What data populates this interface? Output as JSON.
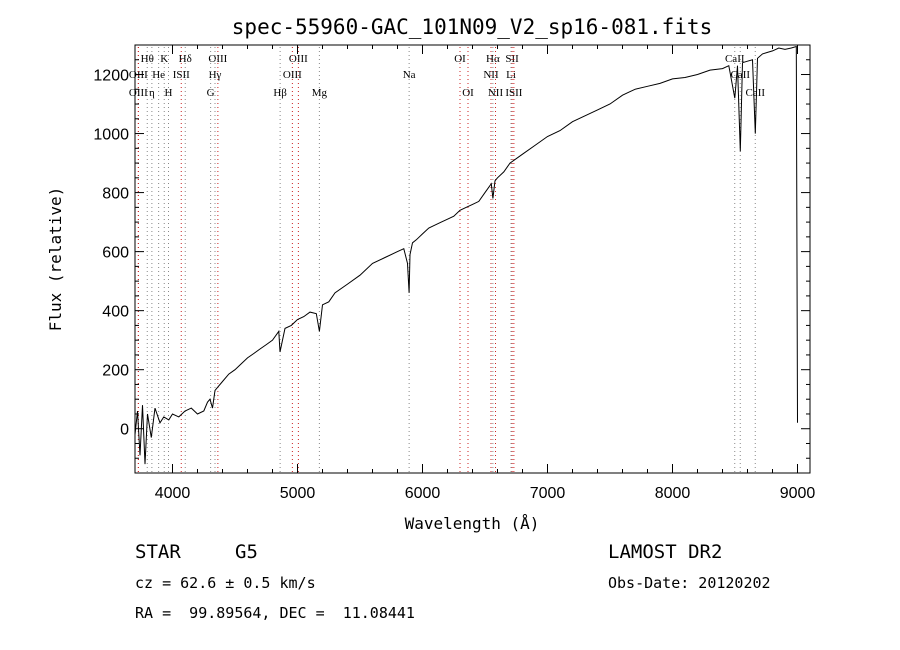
{
  "chart_data": {
    "type": "line",
    "title": "spec-55960-GAC_101N09_V2_sp16-081.fits",
    "xlabel": "Wavelength (Å)",
    "ylabel": "Flux (relative)",
    "xlim": [
      3700,
      9100
    ],
    "ylim": [
      -150,
      1300
    ],
    "x_ticks": [
      4000,
      5000,
      6000,
      7000,
      8000,
      9000
    ],
    "y_ticks": [
      0,
      200,
      400,
      600,
      800,
      1000,
      1200
    ],
    "grid": false,
    "series": [
      {
        "x": [
          3700,
          3720,
          3740,
          3760,
          3780,
          3800,
          3830,
          3860,
          3900,
          3930,
          3970,
          4000,
          4050,
          4100,
          4150,
          4200,
          4250,
          4280,
          4300,
          4320,
          4340,
          4360,
          4400,
          4450,
          4500,
          4550,
          4600,
          4650,
          4700,
          4750,
          4800,
          4850,
          4860,
          4900,
          4950,
          5000,
          5050,
          5100,
          5150,
          5175,
          5200,
          5250,
          5300,
          5400,
          5500,
          5600,
          5700,
          5800,
          5850,
          5880,
          5893,
          5900,
          5920,
          5950,
          6000,
          6050,
          6100,
          6150,
          6200,
          6250,
          6300,
          6350,
          6400,
          6450,
          6500,
          6550,
          6563,
          6580,
          6600,
          6650,
          6700,
          6800,
          6900,
          7000,
          7100,
          7200,
          7300,
          7400,
          7500,
          7600,
          7650,
          7700,
          7800,
          7900,
          8000,
          8100,
          8200,
          8300,
          8400,
          8450,
          8498,
          8520,
          8542,
          8560,
          8600,
          8640,
          8662,
          8680,
          8720,
          8760,
          8800,
          8850,
          8900,
          8950,
          8990,
          9000
        ],
        "y": [
          -20,
          60,
          -90,
          80,
          -120,
          50,
          -30,
          70,
          20,
          40,
          30,
          50,
          40,
          60,
          70,
          50,
          60,
          90,
          100,
          70,
          130,
          140,
          160,
          185,
          200,
          220,
          240,
          255,
          270,
          285,
          300,
          330,
          260,
          340,
          350,
          370,
          380,
          395,
          390,
          330,
          420,
          430,
          460,
          490,
          520,
          560,
          580,
          600,
          610,
          560,
          460,
          590,
          630,
          640,
          660,
          680,
          690,
          700,
          710,
          720,
          740,
          750,
          760,
          770,
          800,
          830,
          780,
          840,
          850,
          870,
          900,
          930,
          960,
          990,
          1010,
          1040,
          1060,
          1080,
          1100,
          1130,
          1140,
          1150,
          1160,
          1170,
          1185,
          1190,
          1200,
          1215,
          1220,
          1230,
          1120,
          1230,
          940,
          1240,
          1245,
          1250,
          1000,
          1255,
          1270,
          1275,
          1280,
          1290,
          1285,
          1290,
          1295,
          20
        ]
      }
    ],
    "line_markers": [
      {
        "label": "Hθ",
        "x": 3798,
        "row": 0,
        "color": "#888888"
      },
      {
        "label": "K",
        "x": 3934,
        "row": 0,
        "color": "#888888"
      },
      {
        "label": "Hδ",
        "x": 4102,
        "row": 0,
        "color": "#888888"
      },
      {
        "label": "OIII",
        "x": 4363,
        "row": 0,
        "color": "#cc2222"
      },
      {
        "label": "OIII",
        "x": 5007,
        "row": 0,
        "color": "#cc2222"
      },
      {
        "label": "OI",
        "x": 6300,
        "row": 0,
        "color": "#cc2222"
      },
      {
        "label": "Hα",
        "x": 6563,
        "row": 0,
        "color": "#888888"
      },
      {
        "label": "SII",
        "x": 6717,
        "row": 0,
        "color": "#cc2222"
      },
      {
        "label": "CaII",
        "x": 8498,
        "row": 0,
        "color": "#888888"
      },
      {
        "label": "OIII",
        "x": 3727,
        "row": 1,
        "color": "#cc2222"
      },
      {
        "label": "He",
        "x": 3889,
        "row": 1,
        "color": "#888888"
      },
      {
        "label": "ISII",
        "x": 4070,
        "row": 1,
        "color": "#cc2222"
      },
      {
        "label": "Hγ",
        "x": 4340,
        "row": 1,
        "color": "#888888"
      },
      {
        "label": "OIII",
        "x": 4959,
        "row": 1,
        "color": "#cc2222"
      },
      {
        "label": "Na",
        "x": 5893,
        "row": 1,
        "color": "#888888"
      },
      {
        "label": "NII",
        "x": 6548,
        "row": 1,
        "color": "#cc2222"
      },
      {
        "label": "Li",
        "x": 6708,
        "row": 1,
        "color": "#888888"
      },
      {
        "label": "CaII",
        "x": 8542,
        "row": 1,
        "color": "#888888"
      },
      {
        "label": "OIII",
        "x": 3727,
        "row": 2,
        "color": "#cc2222"
      },
      {
        "label": "η",
        "x": 3835,
        "row": 2,
        "color": "#888888"
      },
      {
        "label": "H",
        "x": 3968,
        "row": 2,
        "color": "#888888"
      },
      {
        "label": "G",
        "x": 4305,
        "row": 2,
        "color": "#888888"
      },
      {
        "label": "Hβ",
        "x": 4861,
        "row": 2,
        "color": "#888888"
      },
      {
        "label": "Mg",
        "x": 5175,
        "row": 2,
        "color": "#888888"
      },
      {
        "label": "OI",
        "x": 6364,
        "row": 2,
        "color": "#cc2222"
      },
      {
        "label": "NII",
        "x": 6584,
        "row": 2,
        "color": "#cc2222"
      },
      {
        "label": "ISII",
        "x": 6731,
        "row": 2,
        "color": "#cc2222"
      },
      {
        "label": "CaII",
        "x": 8662,
        "row": 2,
        "color": "#888888"
      }
    ]
  },
  "info": {
    "object_class": "STAR",
    "subclass": "G5",
    "survey": "LAMOST DR2",
    "cz": "cz = 62.6 ± 0.5 km/s",
    "obs_date": "Obs-Date: 20120202",
    "coords": "RA =  99.89564, DEC =  11.08441"
  }
}
